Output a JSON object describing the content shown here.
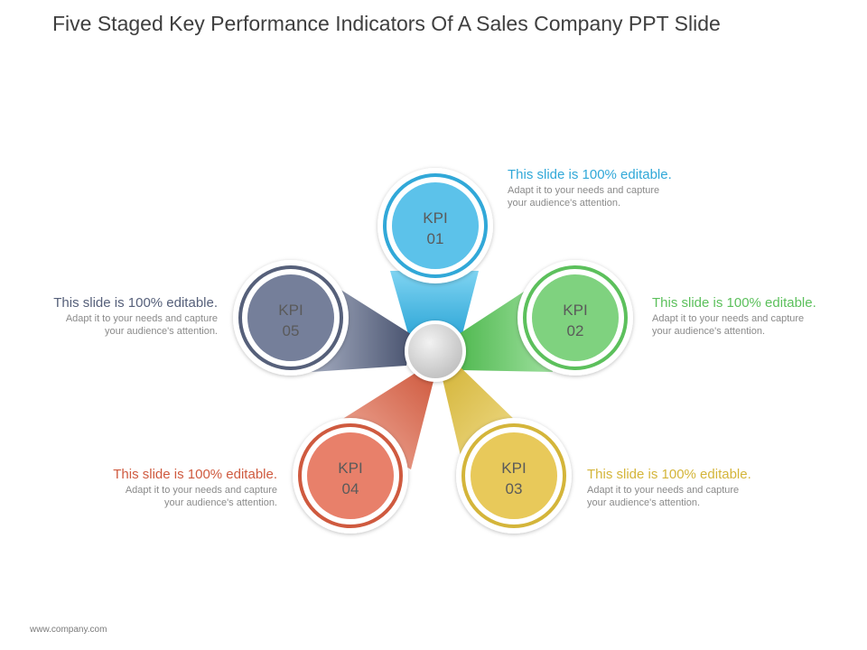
{
  "title": "Five Staged Key Performance Indicators Of A Sales Company PPT Slide",
  "footer": "www.company.com",
  "stages": [
    {
      "label_line1": "KPI",
      "label_line2": "01",
      "color": "#31a8d8",
      "fill": "#5cc2ea",
      "heading": "This slide is 100% editable.",
      "body_line1": "Adapt it to your needs and capture",
      "body_line2": "your audience's attention."
    },
    {
      "label_line1": "KPI",
      "label_line2": "02",
      "color": "#5cc05c",
      "fill": "#7fd27f",
      "heading": "This slide is 100% editable.",
      "body_line1": "Adapt it to your needs and capture",
      "body_line2": "your audience's attention."
    },
    {
      "label_line1": "KPI",
      "label_line2": "03",
      "color": "#d4b53a",
      "fill": "#e8c95a",
      "heading": "This slide is 100% editable.",
      "body_line1": "Adapt it to your needs and capture",
      "body_line2": "your audience's attention."
    },
    {
      "label_line1": "KPI",
      "label_line2": "04",
      "color": "#cf5a3f",
      "fill": "#e8806a",
      "heading": "This slide is 100% editable.",
      "body_line1": "Adapt it to your needs and capture",
      "body_line2": "your audience's attention."
    },
    {
      "label_line1": "KPI",
      "label_line2": "05",
      "color": "#56607a",
      "fill": "#757f9a",
      "heading": "This slide is 100% editable.",
      "body_line1": "Adapt it to your needs and capture",
      "body_line2": "your audience's attention."
    }
  ]
}
